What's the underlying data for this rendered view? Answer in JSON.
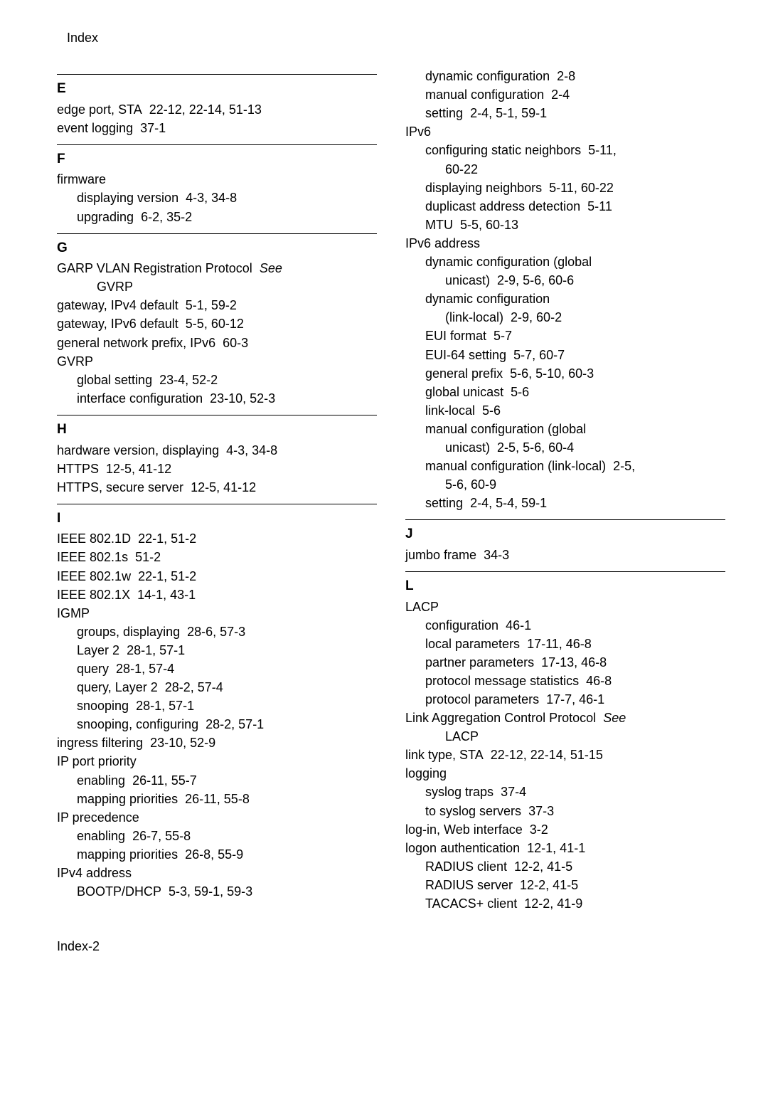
{
  "header": "Index",
  "footer": "Index-2",
  "left": {
    "sections": [
      {
        "letter": "E",
        "lines": [
          {
            "cls": "entry",
            "text": "edge port, STA",
            "refs": "22-12, 22-14, 51-13"
          },
          {
            "cls": "entry",
            "text": "event logging",
            "refs": "37-1"
          }
        ]
      },
      {
        "letter": "F",
        "lines": [
          {
            "cls": "entry",
            "text": "firmware"
          },
          {
            "cls": "sub",
            "text": "displaying version",
            "refs": "4-3, 34-8"
          },
          {
            "cls": "sub",
            "text": "upgrading",
            "refs": "6-2, 35-2"
          }
        ]
      },
      {
        "letter": "G",
        "lines": [
          {
            "cls": "entry",
            "text": "GARP VLAN Registration Protocol",
            "see": "See"
          },
          {
            "cls": "sub2",
            "text": "GVRP"
          },
          {
            "cls": "entry",
            "text": "gateway, IPv4 default",
            "refs": "5-1, 59-2"
          },
          {
            "cls": "entry",
            "text": "gateway, IPv6 default",
            "refs": "5-5, 60-12"
          },
          {
            "cls": "entry",
            "text": "general network prefix, IPv6",
            "refs": "60-3"
          },
          {
            "cls": "entry",
            "text": "GVRP"
          },
          {
            "cls": "sub",
            "text": "global setting",
            "refs": "23-4, 52-2"
          },
          {
            "cls": "sub",
            "text": "interface configuration",
            "refs": "23-10, 52-3"
          }
        ]
      },
      {
        "letter": "H",
        "lines": [
          {
            "cls": "entry",
            "text": "hardware version, displaying",
            "refs": "4-3, 34-8"
          },
          {
            "cls": "entry",
            "text": "HTTPS",
            "refs": "12-5, 41-12"
          },
          {
            "cls": "entry",
            "text": "HTTPS, secure server",
            "refs": "12-5, 41-12"
          }
        ]
      },
      {
        "letter": "I",
        "lines": [
          {
            "cls": "entry",
            "text": "IEEE 802.1D",
            "refs": "22-1, 51-2"
          },
          {
            "cls": "entry",
            "text": "IEEE 802.1s",
            "refs": "51-2"
          },
          {
            "cls": "entry",
            "text": "IEEE 802.1w",
            "refs": "22-1, 51-2"
          },
          {
            "cls": "entry",
            "text": "IEEE 802.1X",
            "refs": "14-1, 43-1"
          },
          {
            "cls": "entry",
            "text": "IGMP"
          },
          {
            "cls": "sub",
            "text": "groups, displaying",
            "refs": "28-6, 57-3"
          },
          {
            "cls": "sub",
            "text": "Layer 2",
            "refs": "28-1, 57-1"
          },
          {
            "cls": "sub",
            "text": "query",
            "refs": "28-1, 57-4"
          },
          {
            "cls": "sub",
            "text": "query, Layer 2",
            "refs": "28-2, 57-4"
          },
          {
            "cls": "sub",
            "text": "snooping",
            "refs": "28-1, 57-1"
          },
          {
            "cls": "sub",
            "text": "snooping, configuring",
            "refs": "28-2, 57-1"
          },
          {
            "cls": "entry",
            "text": "ingress filtering",
            "refs": "23-10, 52-9"
          },
          {
            "cls": "entry",
            "text": "IP port priority"
          },
          {
            "cls": "sub",
            "text": "enabling",
            "refs": "26-11, 55-7"
          },
          {
            "cls": "sub",
            "text": "mapping priorities",
            "refs": "26-11, 55-8"
          },
          {
            "cls": "entry",
            "text": "IP precedence"
          },
          {
            "cls": "sub",
            "text": "enabling",
            "refs": "26-7, 55-8"
          },
          {
            "cls": "sub",
            "text": "mapping priorities",
            "refs": "26-8, 55-9"
          },
          {
            "cls": "entry",
            "text": "IPv4 address"
          },
          {
            "cls": "sub",
            "text": "BOOTP/DHCP",
            "refs": "5-3, 59-1, 59-3"
          }
        ]
      }
    ]
  },
  "right": {
    "leading": [
      {
        "cls": "sub",
        "text": "dynamic configuration",
        "refs": "2-8"
      },
      {
        "cls": "sub",
        "text": "manual configuration",
        "refs": "2-4"
      },
      {
        "cls": "sub",
        "text": "setting",
        "refs": "2-4, 5-1, 59-1"
      },
      {
        "cls": "entry",
        "text": "IPv6"
      },
      {
        "cls": "sub",
        "text": "configuring static neighbors",
        "refs": "5-11,"
      },
      {
        "cls": "sub2",
        "text": "60-22"
      },
      {
        "cls": "sub",
        "text": "displaying neighbors",
        "refs": "5-11, 60-22"
      },
      {
        "cls": "sub",
        "text": "duplicast address detection",
        "refs": "5-11"
      },
      {
        "cls": "sub",
        "text": "MTU",
        "refs": "5-5, 60-13"
      },
      {
        "cls": "entry",
        "text": "IPv6 address"
      },
      {
        "cls": "sub",
        "text": "dynamic configuration (global"
      },
      {
        "cls": "sub2",
        "text": "unicast)",
        "refs": "2-9, 5-6, 60-6"
      },
      {
        "cls": "sub",
        "text": "dynamic configuration"
      },
      {
        "cls": "sub2",
        "text": "(link-local)",
        "refs": "2-9, 60-2"
      },
      {
        "cls": "sub",
        "text": "EUI format",
        "refs": "5-7"
      },
      {
        "cls": "sub",
        "text": "EUI-64 setting",
        "refs": "5-7, 60-7"
      },
      {
        "cls": "sub",
        "text": "general prefix",
        "refs": "5-6, 5-10, 60-3"
      },
      {
        "cls": "sub",
        "text": "global unicast",
        "refs": "5-6"
      },
      {
        "cls": "sub",
        "text": "link-local",
        "refs": "5-6"
      },
      {
        "cls": "sub",
        "text": "manual configuration (global"
      },
      {
        "cls": "sub2",
        "text": "unicast)",
        "refs": "2-5, 5-6, 60-4"
      },
      {
        "cls": "sub",
        "text": "manual configuration (link-local)",
        "refs": "2-5,"
      },
      {
        "cls": "sub2",
        "text": "5-6, 60-9"
      },
      {
        "cls": "sub",
        "text": "setting",
        "refs": "2-4, 5-4, 59-1"
      }
    ],
    "sections": [
      {
        "letter": "J",
        "lines": [
          {
            "cls": "entry",
            "text": "jumbo frame",
            "refs": "34-3"
          }
        ]
      },
      {
        "letter": "L",
        "lines": [
          {
            "cls": "entry",
            "text": "LACP"
          },
          {
            "cls": "sub",
            "text": "configuration",
            "refs": "46-1"
          },
          {
            "cls": "sub",
            "text": "local parameters",
            "refs": "17-11, 46-8"
          },
          {
            "cls": "sub",
            "text": "partner parameters",
            "refs": "17-13, 46-8"
          },
          {
            "cls": "sub",
            "text": "protocol message statistics",
            "refs": "46-8"
          },
          {
            "cls": "sub",
            "text": "protocol parameters",
            "refs": "17-7, 46-1"
          },
          {
            "cls": "entry",
            "text": "Link Aggregation Control Protocol",
            "see": "See"
          },
          {
            "cls": "sub2",
            "text": "LACP"
          },
          {
            "cls": "entry",
            "text": "link type, STA",
            "refs": "22-12, 22-14, 51-15"
          },
          {
            "cls": "entry",
            "text": "logging"
          },
          {
            "cls": "sub",
            "text": "syslog traps",
            "refs": "37-4"
          },
          {
            "cls": "sub",
            "text": "to syslog servers",
            "refs": "37-3"
          },
          {
            "cls": "entry",
            "text": "log-in, Web interface",
            "refs": "3-2"
          },
          {
            "cls": "entry",
            "text": "logon authentication",
            "refs": "12-1, 41-1"
          },
          {
            "cls": "sub",
            "text": "RADIUS client",
            "refs": "12-2, 41-5"
          },
          {
            "cls": "sub",
            "text": "RADIUS server",
            "refs": "12-2, 41-5"
          },
          {
            "cls": "sub",
            "text": "TACACS+ client",
            "refs": "12-2, 41-9"
          }
        ]
      }
    ]
  }
}
